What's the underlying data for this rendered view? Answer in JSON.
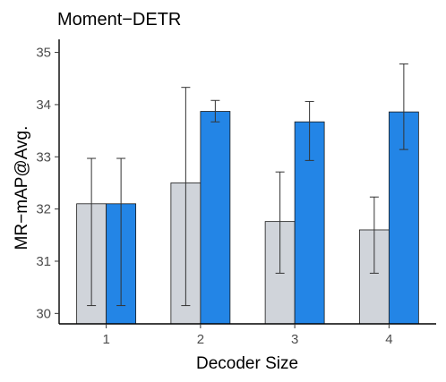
{
  "chart_data": {
    "type": "bar",
    "title": "Moment−DETR",
    "xlabel": "Decoder Size",
    "ylabel": "MR−mAP@Avg.",
    "categories": [
      "1",
      "2",
      "3",
      "4"
    ],
    "ylim": [
      29.8,
      35.25
    ],
    "yticks": [
      30,
      31,
      32,
      33,
      34,
      35
    ],
    "grid": false,
    "legend": "none",
    "series": [
      {
        "color": "#d0d4da",
        "values": [
          32.1,
          32.5,
          31.76,
          31.6
        ],
        "err_low": [
          30.15,
          30.15,
          30.77,
          30.77
        ],
        "err_high": [
          32.97,
          34.33,
          32.71,
          32.23
        ]
      },
      {
        "color": "#2385e6",
        "values": [
          32.1,
          33.87,
          33.67,
          33.86
        ],
        "err_low": [
          30.15,
          33.67,
          32.93,
          33.14
        ],
        "err_high": [
          32.97,
          34.08,
          34.06,
          34.78
        ]
      }
    ]
  }
}
